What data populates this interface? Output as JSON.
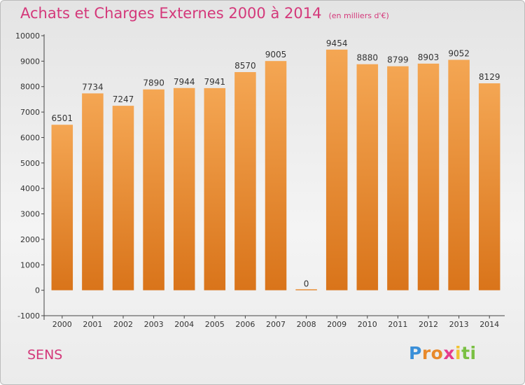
{
  "title": "Achats et Charges Externes 2000 à 2014",
  "subtitle": "(en milliers d'€)",
  "city": "SENS",
  "logo": {
    "letters": [
      "P",
      "r",
      "o",
      "x",
      "i",
      "t",
      "i"
    ],
    "colors": [
      "#3a8fd8",
      "#e8892b",
      "#e8892b",
      "#e63c8c",
      "#f2c233",
      "#7ac043",
      "#7ac043"
    ]
  },
  "colors": {
    "bar": "#e8892b",
    "title": "#d4387a"
  },
  "chart_data": {
    "type": "bar",
    "categories": [
      "2000",
      "2001",
      "2002",
      "2003",
      "2004",
      "2005",
      "2006",
      "2007",
      "2008",
      "2009",
      "2010",
      "2011",
      "2012",
      "2013",
      "2014"
    ],
    "values": [
      6501,
      7734,
      7247,
      7890,
      7944,
      7941,
      8570,
      9005,
      0,
      9454,
      8880,
      8799,
      8903,
      9052,
      8129
    ],
    "title": "Achats et Charges Externes 2000 à 2014",
    "ylim": [
      -1000,
      10000
    ],
    "yticks": [
      -1000,
      0,
      1000,
      2000,
      3000,
      4000,
      5000,
      6000,
      7000,
      8000,
      9000,
      10000
    ],
    "grid": false
  }
}
